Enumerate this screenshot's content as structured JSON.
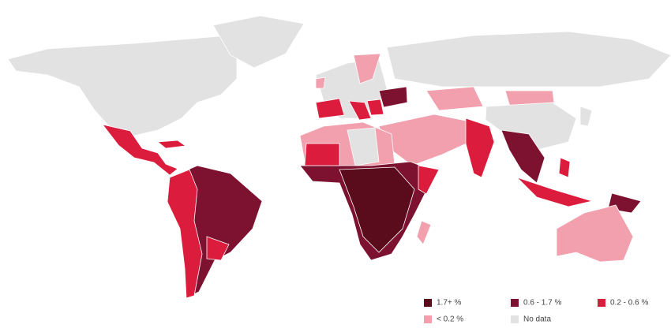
{
  "legend": {
    "items": [
      {
        "label": "1.7+ %",
        "color": "#5a0b1c"
      },
      {
        "label": "0.6 - 1.7 %",
        "color": "#7d1230"
      },
      {
        "label": "0.2 - 0.6 %",
        "color": "#dc1c3c"
      },
      {
        "label": "< 0.2 %",
        "color": "#f2a0ae"
      },
      {
        "label": "No data",
        "color": "#e2e2e2"
      }
    ]
  }
}
